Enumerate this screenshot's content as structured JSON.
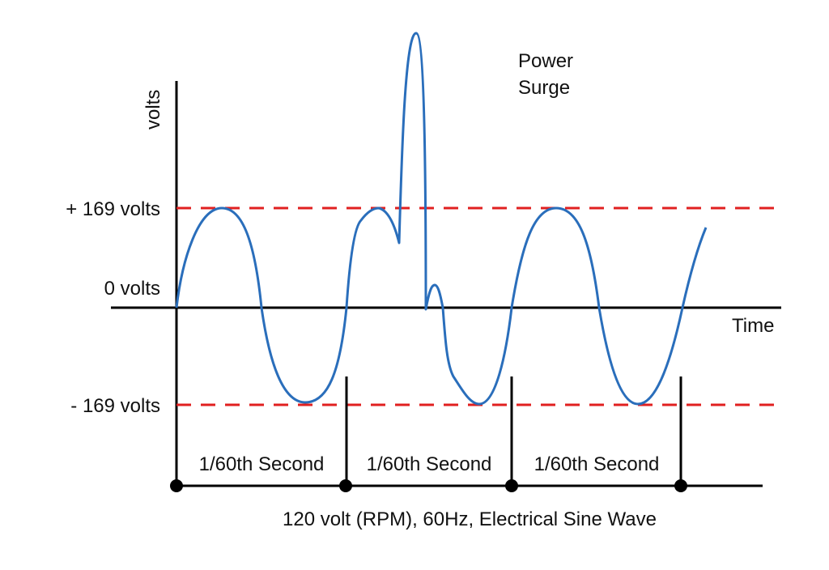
{
  "y_axis_label": "volts",
  "x_axis_label": "Time",
  "levels": {
    "positive": "+ 169 volts",
    "zero": "0 volts",
    "negative": "- 169 volts"
  },
  "annotation": "Power Surge",
  "annotation_lines": [
    "Power",
    "Surge"
  ],
  "intervals": [
    "1/60th Second",
    "1/60th Second",
    "1/60th Second"
  ],
  "caption": "120 volt (RPM), 60Hz, Electrical Sine Wave",
  "colors": {
    "wave": "#2a6ebb",
    "reference_lines": "#e02020",
    "axes": "#000000"
  }
}
